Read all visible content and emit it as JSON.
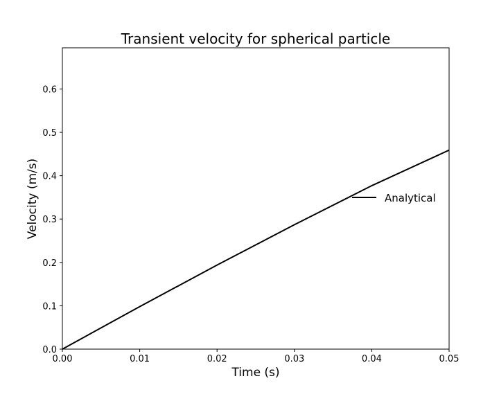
{
  "chart_data": {
    "type": "line",
    "title": "Transient velocity for spherical particle",
    "xlabel": "Time (s)",
    "ylabel": "Velocity (m/s)",
    "xlim": [
      0.0,
      0.05
    ],
    "ylim": [
      0.0,
      0.695
    ],
    "xticks": [
      "0.00",
      "0.01",
      "0.02",
      "0.03",
      "0.04",
      "0.05"
    ],
    "yticks": [
      "0.0",
      "0.1",
      "0.2",
      "0.3",
      "0.4",
      "0.5",
      "0.6"
    ],
    "grid": false,
    "legend_position": "right",
    "series": [
      {
        "name": "Analytical",
        "color": "#000000",
        "x": [
          0.0,
          0.01,
          0.02,
          0.03,
          0.04,
          0.05
        ],
        "y": [
          0.0,
          0.098,
          0.194,
          0.287,
          0.377,
          0.459
        ]
      }
    ]
  }
}
